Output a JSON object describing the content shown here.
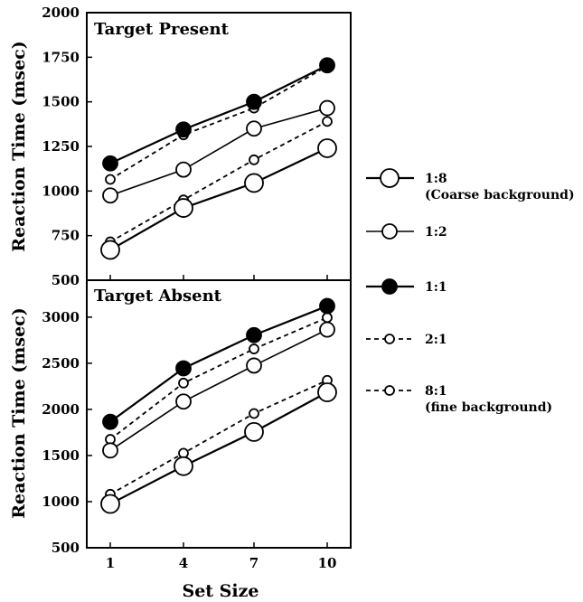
{
  "chart_data": [
    {
      "type": "line",
      "title": "Target Present",
      "xlabel": "Set Size",
      "ylabel": "Reaction Time (msec)",
      "x": [
        1,
        4,
        7,
        10
      ],
      "xticks": [
        "1",
        "4",
        "7",
        "10"
      ],
      "ylim": [
        500,
        2000
      ],
      "yticks": [
        "500",
        "750",
        "1000",
        "1250",
        "1500",
        "1750",
        "2000"
      ],
      "series": [
        {
          "name": "1:8",
          "values": [
            670,
            905,
            1045,
            1240
          ]
        },
        {
          "name": "1:2",
          "values": [
            975,
            1120,
            1350,
            1465
          ]
        },
        {
          "name": "1:1",
          "values": [
            1155,
            1345,
            1500,
            1705
          ]
        },
        {
          "name": "2:1",
          "values": [
            1065,
            1315,
            1465,
            1700
          ]
        },
        {
          "name": "8:1",
          "values": [
            715,
            950,
            1175,
            1390
          ]
        }
      ]
    },
    {
      "type": "line",
      "title": "Target Absent",
      "xlabel": "Set Size",
      "ylabel": "Reaction Time (msec)",
      "x": [
        1,
        4,
        7,
        10
      ],
      "xticks": [
        "1",
        "4",
        "7",
        "10"
      ],
      "ylim": [
        500,
        3400
      ],
      "yticks": [
        "500",
        "1000",
        "1500",
        "2000",
        "2500",
        "3000"
      ],
      "series": [
        {
          "name": "1:8",
          "values": [
            975,
            1385,
            1755,
            2185
          ]
        },
        {
          "name": "1:2",
          "values": [
            1555,
            2085,
            2475,
            2865
          ]
        },
        {
          "name": "1:1",
          "values": [
            1865,
            2445,
            2805,
            3120
          ]
        },
        {
          "name": "2:1",
          "values": [
            1675,
            2285,
            2655,
            2995
          ]
        },
        {
          "name": "8:1",
          "values": [
            1080,
            1525,
            1955,
            2315
          ]
        }
      ]
    }
  ],
  "legend": [
    {
      "label": "1:8",
      "sublabel": "(Coarse background)",
      "marker": "open-large",
      "line": "solid"
    },
    {
      "label": "1:2",
      "sublabel": "",
      "marker": "open-medium",
      "line": "solid"
    },
    {
      "label": "1:1",
      "sublabel": "",
      "marker": "filled",
      "line": "solid"
    },
    {
      "label": "2:1",
      "sublabel": "",
      "marker": "open-small",
      "line": "dashed"
    },
    {
      "label": "8:1",
      "sublabel": "(fine background)",
      "marker": "open-small",
      "line": "dashed"
    }
  ]
}
